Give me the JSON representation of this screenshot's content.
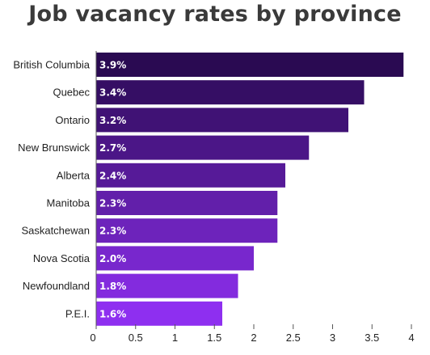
{
  "chart_data": {
    "type": "bar",
    "orientation": "horizontal",
    "title": "Job vacancy rates by province",
    "xlabel": "",
    "ylabel": "",
    "categories": [
      "British Columbia",
      "Quebec",
      "Ontario",
      "New Brunswick",
      "Alberta",
      "Manitoba",
      "Saskatchewan",
      "Nova Scotia",
      "Newfoundland",
      "P.E.I."
    ],
    "values": [
      3.9,
      3.4,
      3.2,
      2.7,
      2.4,
      2.3,
      2.3,
      2.0,
      1.8,
      1.6
    ],
    "value_labels": [
      "3.9%",
      "3.4%",
      "3.2%",
      "2.7%",
      "2.4%",
      "2.3%",
      "2.3%",
      "2.0%",
      "1.8%",
      "1.6%"
    ],
    "xlim": [
      0,
      4
    ],
    "xticks": [
      "0",
      "0.5",
      "1",
      "1.5",
      "2",
      "2.5",
      "3",
      "3.5",
      "4"
    ],
    "xtick_values": [
      0,
      0.5,
      1,
      1.5,
      2,
      2.5,
      3,
      3.5,
      4
    ],
    "grid": false,
    "legend": "none",
    "colors": {
      "bar_top": "#2a0a52",
      "bar_bottom": "#8e2ff0",
      "title": "#3a3a3a",
      "text": "#222222",
      "value_text": "#ffffff",
      "axis": "#555555"
    }
  }
}
